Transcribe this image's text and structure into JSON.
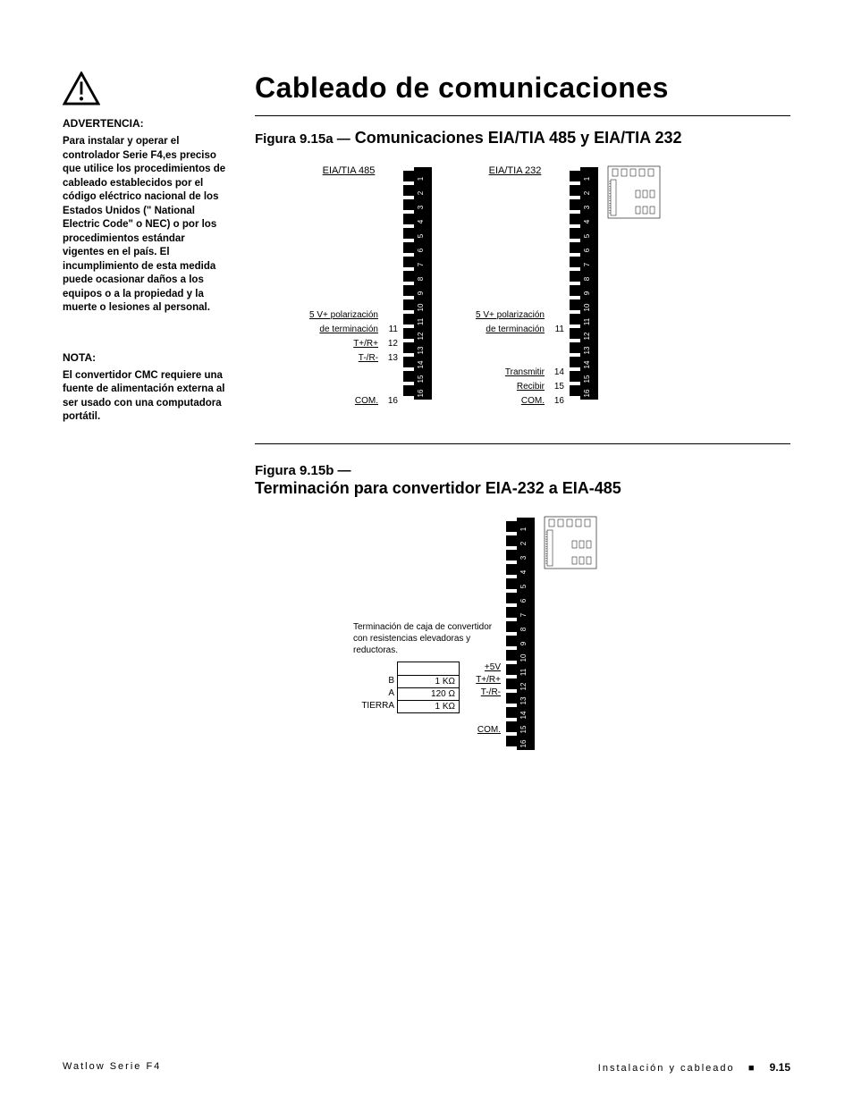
{
  "sidebar": {
    "warning_label": "ADVERTENCIA:",
    "warning_text": "Para instalar y operar el controlador Serie F4,es preciso que utilice los procedimientos de cableado establecidos por el código eléctrico nacional de los Estados Unidos (\" National Electric Code\" o NEC) o por los procedimientos estándar vigentes en el país. El incumplimiento de esta medida puede ocasionar daños a los equipos o a la propiedad y la muerte o lesiones al personal.",
    "note_label": "NOTA:",
    "note_text": "El convertidor CMC requiere una fuente de alimentación externa al ser usado con una computadora portátil."
  },
  "title": "Cableado de comunicaciones",
  "fig_a": {
    "lead": "Figura 9.15a —",
    "title": "Comunicaciones EIA/TIA 485 y EIA/TIA 232",
    "left": {
      "header": "EIA/TIA 485",
      "rows": [
        "",
        "",
        "",
        "",
        "",
        "",
        "",
        "",
        "",
        {
          "label": "5 V+ polarización",
          "num": ""
        },
        {
          "label": "de terminación",
          "num": "11"
        },
        {
          "label": "T+/R+",
          "num": "12"
        },
        {
          "label": "T-/R-",
          "num": "13"
        },
        "",
        "",
        {
          "label": "COM.",
          "num": "16"
        }
      ]
    },
    "right": {
      "header": "EIA/TIA 232",
      "rows": [
        "",
        "",
        "",
        "",
        "",
        "",
        "",
        "",
        "",
        {
          "label": "5 V+ polarización",
          "num": ""
        },
        {
          "label": "de terminación",
          "num": "11"
        },
        "",
        "",
        {
          "label": "Transmitir",
          "num": "14"
        },
        {
          "label": "Recibir",
          "num": "15"
        },
        {
          "label": "COM.",
          "num": "16"
        }
      ]
    }
  },
  "fig_b": {
    "lead": "Figura 9.15b —",
    "title": "Terminación para convertidor EIA-232 a EIA-485",
    "note": "Terminación de caja de convertidor con resistencias elevadoras y reductoras.",
    "box": {
      "side": [
        "",
        "B",
        "A",
        "TIERRA"
      ],
      "vals": [
        "",
        "1 KΩ",
        "120 Ω",
        "1 KΩ"
      ]
    },
    "rows": [
      "",
      "",
      "",
      "",
      "",
      "",
      "",
      "",
      "",
      {
        "label": "+5V",
        "num": ""
      },
      {
        "label": "T+/R+",
        "num": ""
      },
      {
        "label": "T-/R-",
        "num": ""
      },
      "",
      "",
      {
        "label": "COM.",
        "num": ""
      }
    ]
  },
  "connector": {
    "pins": 16,
    "pin_h": 16,
    "colors": {
      "body": "#000000",
      "text": "#ffffff",
      "tooth": "#000000"
    }
  },
  "footer": {
    "left": "Watlow Serie F4",
    "section": "Instalación y cableado",
    "chapter": "9.15"
  }
}
